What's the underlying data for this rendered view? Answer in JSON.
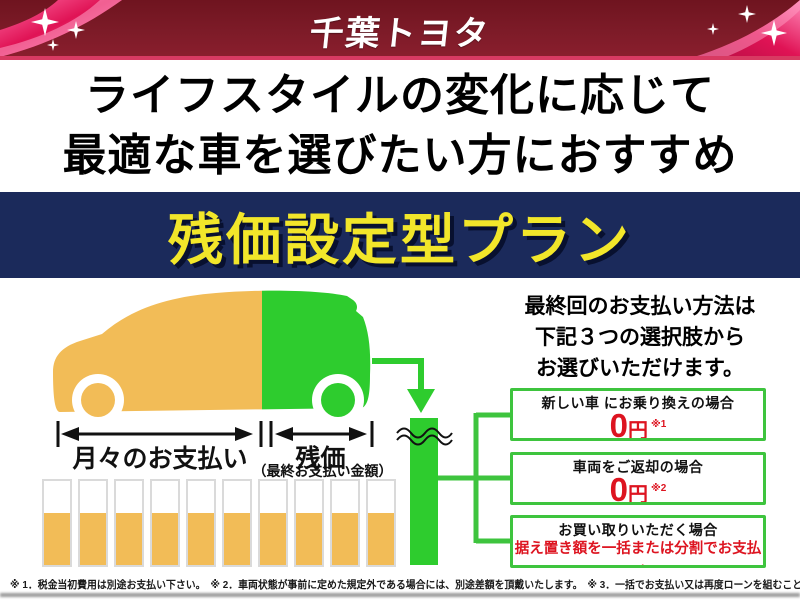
{
  "header": {
    "brand": "千葉トヨタ",
    "bg_color": "#7a1a26",
    "ribbon_color": "#e8175d",
    "sparkle_color": "#ffffff"
  },
  "headline": {
    "line1": "ライフスタイルの変化に応じて",
    "line2": "最適な車を選びたい方におすすめ"
  },
  "plan_banner": {
    "text": "残価設定型プラン",
    "bg_color": "#1b2a5b",
    "text_color": "#f2e62a"
  },
  "diagram": {
    "monthly_label": "月々のお支払い",
    "residual_label": "残価",
    "residual_sublabel": "（最終お支払い金額）",
    "monthly_bars": 10,
    "car_front_color": "#f2bc57",
    "car_rear_color": "#2ecc2e",
    "bar_fill_color": "#f2bc57",
    "residual_bar_color": "#2ecc2e"
  },
  "options_panel": {
    "intro_line1": "最終回のお支払い方法は",
    "intro_line2": "下記３つの選択肢から",
    "intro_line3": "お選びいただけます。",
    "options": [
      {
        "title": "新しい車 にお乗り換えの場合",
        "value": "0",
        "unit": "円",
        "note": "※1"
      },
      {
        "title": "車両をご返却の場合",
        "value": "0",
        "unit": "円",
        "note": "※2"
      },
      {
        "title": "お買い取りいただく場合",
        "value_text": "据え置き額を一括または分割でお支払い",
        "note": "※3"
      }
    ],
    "accent_color": "#3ec43e",
    "price_color": "#dd1420"
  },
  "footnotes": "※ 1．税金当初費用は別途お支払い下さい。　※ 2．車両状態が事前に定めた規定外である場合には、別途差額を頂戴いたします。　※ 3．一括でお支払い又は再度ローンを組むこともできます。"
}
